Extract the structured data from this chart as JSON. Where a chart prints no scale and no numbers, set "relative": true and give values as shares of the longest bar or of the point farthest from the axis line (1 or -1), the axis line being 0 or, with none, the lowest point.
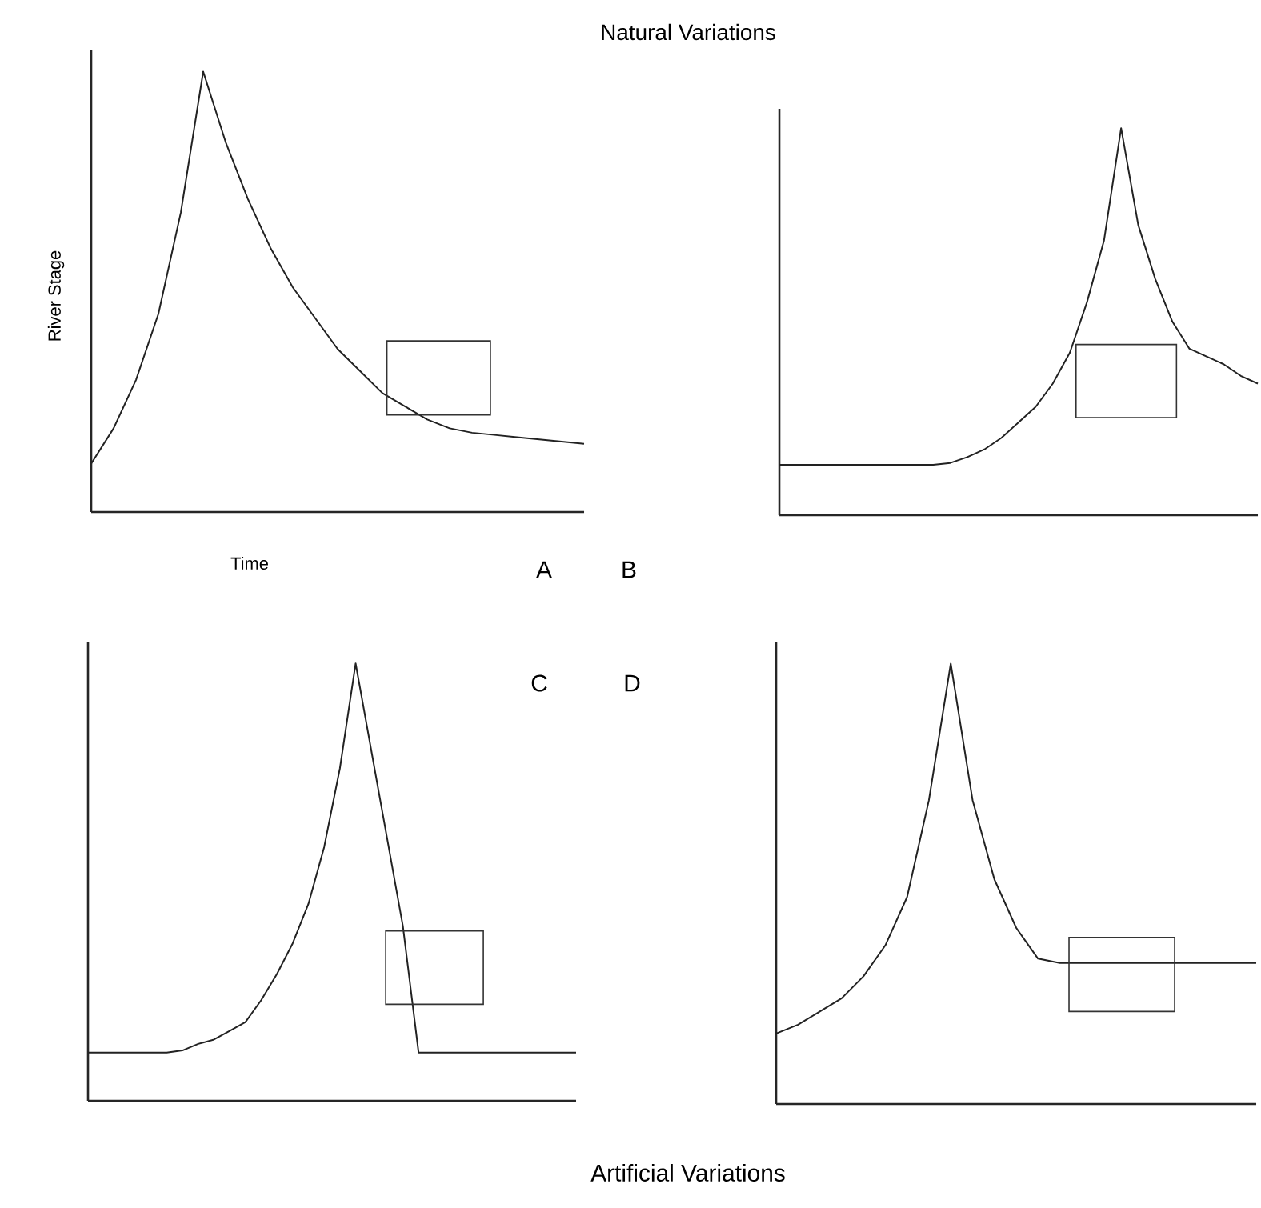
{
  "chart_data": [
    {
      "type": "line",
      "relative": true,
      "xlabel": "Time",
      "ylabel": "River Stage",
      "annotations": [
        "A"
      ],
      "color": "#222222",
      "categories": [
        null,
        null,
        null,
        null,
        null,
        null,
        null,
        null,
        null,
        null,
        null,
        null,
        null,
        null,
        null,
        null,
        null,
        null,
        null,
        null,
        null,
        null,
        null
      ],
      "values": [
        0.11,
        0.19,
        0.3,
        0.45,
        0.68,
        1.0,
        0.84,
        0.71,
        0.6,
        0.51,
        0.44,
        0.37,
        0.32,
        0.27,
        0.24,
        0.21,
        0.19,
        0.18,
        0.175,
        0.17,
        0.165,
        0.16,
        0.155
      ]
    },
    {
      "type": "line",
      "relative": true,
      "title": "Natural Variations",
      "annotations": [
        "B"
      ],
      "color": "#222222",
      "categories": [
        null,
        null,
        null,
        null,
        null,
        null,
        null,
        null,
        null,
        null,
        null,
        null,
        null,
        null,
        null,
        null,
        null,
        null,
        null,
        null,
        null,
        null,
        null,
        null,
        null,
        null,
        null,
        null,
        null
      ],
      "values": [
        0.13,
        0.13,
        0.13,
        0.13,
        0.13,
        0.13,
        0.13,
        0.13,
        0.13,
        0.13,
        0.135,
        0.15,
        0.17,
        0.2,
        0.24,
        0.28,
        0.34,
        0.42,
        0.55,
        0.71,
        1.0,
        0.75,
        0.61,
        0.5,
        0.43,
        0.41,
        0.39,
        0.36,
        0.34
      ]
    },
    {
      "type": "line",
      "relative": true,
      "annotations": [
        "C",
        "Artificial Variations"
      ],
      "color": "#222222",
      "categories": [
        null,
        null,
        null,
        null,
        null,
        null,
        null,
        null,
        null,
        null,
        null,
        null,
        null,
        null,
        null,
        null,
        null,
        null,
        null,
        null,
        null,
        null,
        null,
        null,
        null,
        null,
        null,
        null,
        null,
        null,
        null,
        null
      ],
      "values": [
        0.11,
        0.11,
        0.11,
        0.11,
        0.11,
        0.11,
        0.115,
        0.13,
        0.14,
        0.16,
        0.18,
        0.23,
        0.29,
        0.36,
        0.45,
        0.58,
        0.76,
        1.0,
        0.8,
        0.6,
        0.4,
        0.11,
        0.11,
        0.11,
        0.11,
        0.11,
        0.11,
        0.11,
        0.11,
        0.11,
        0.11,
        0.11
      ]
    },
    {
      "type": "line",
      "relative": true,
      "annotations": [
        "D"
      ],
      "color": "#222222",
      "categories": [
        null,
        null,
        null,
        null,
        null,
        null,
        null,
        null,
        null,
        null,
        null,
        null,
        null,
        null,
        null,
        null,
        null,
        null,
        null,
        null,
        null,
        null,
        null
      ],
      "values": [
        0.16,
        0.18,
        0.21,
        0.24,
        0.29,
        0.36,
        0.47,
        0.69,
        1.0,
        0.69,
        0.51,
        0.4,
        0.33,
        0.32,
        0.32,
        0.32,
        0.32,
        0.32,
        0.32,
        0.32,
        0.32,
        0.32,
        0.32
      ]
    }
  ]
}
